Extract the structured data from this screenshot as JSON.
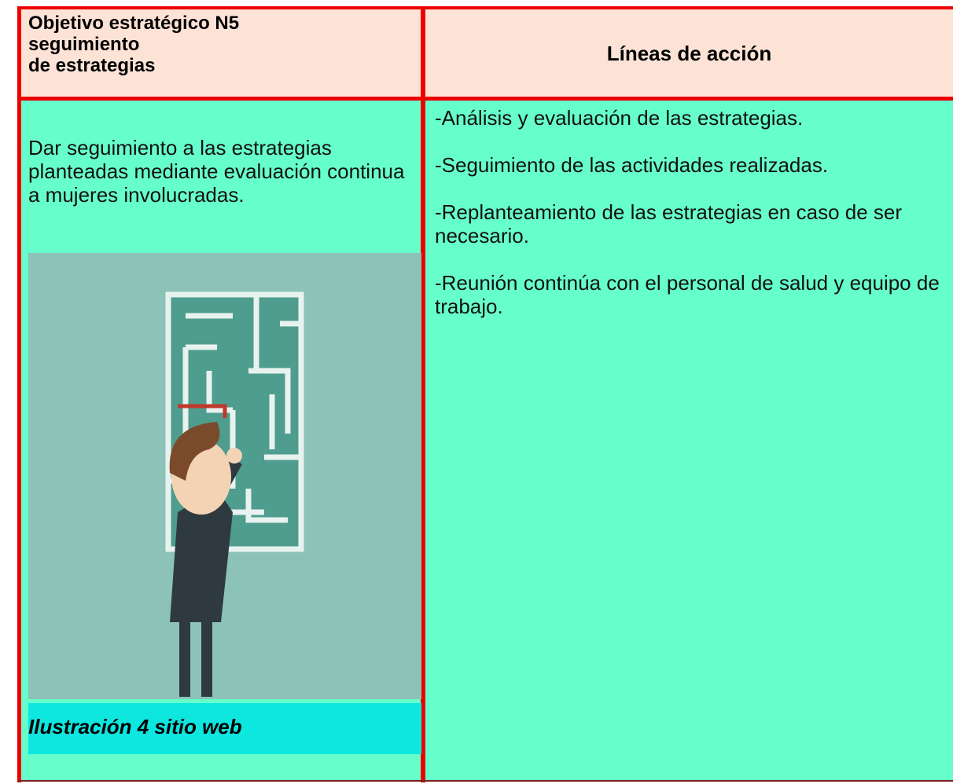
{
  "header": {
    "objective": [
      "Objetivo estratégico N5",
      "seguimiento",
      "de estrategias"
    ],
    "actions": "Líneas de acción"
  },
  "body": {
    "objective": "Dar seguimiento a las estrategias planteadas mediante evaluación continua a mujeres involucradas.",
    "actions": [
      "-Análisis y evaluación de las estrategias.",
      "-Seguimiento de las actividades realizadas.",
      "-Replanteamiento de las estrategias en caso de ser necesario.",
      "-Reunión continúa con el personal de salud y equipo de trabajo."
    ],
    "caption": "Ilustración 4 sitio web"
  }
}
